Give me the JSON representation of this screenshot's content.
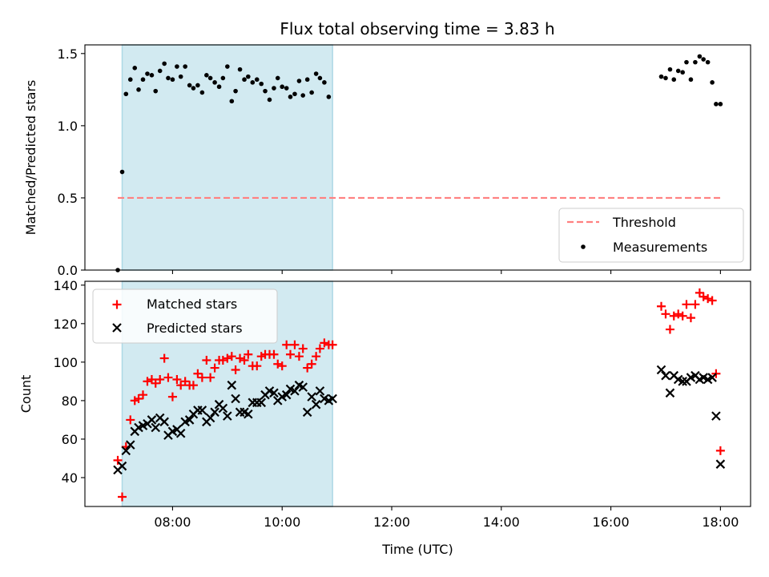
{
  "title": "Flux total observing time = 3.83 h",
  "colors": {
    "shade": "#add8e6",
    "threshold": "#ff8080",
    "measurement": "#000000",
    "matched": "#ff0000",
    "predicted": "#000000"
  },
  "chart_data": [
    {
      "type": "scatter",
      "ylabel": "Matched/Predicted stars",
      "xlim": [
        6.4,
        18.55
      ],
      "ylim": [
        0,
        1.56
      ],
      "yticks": [
        0,
        0.5,
        1.0,
        1.5
      ],
      "ytick_labels": [
        "0.0",
        "0.5",
        "1.0",
        "1.5"
      ],
      "shaded_span": [
        7.08,
        10.92
      ],
      "threshold": {
        "name": "Threshold",
        "y": 0.5,
        "x_range": [
          7.0,
          18.0
        ]
      },
      "legend": {
        "position": "lower right",
        "entries": [
          "Threshold",
          "Measurements"
        ]
      },
      "series": [
        {
          "name": "Measurements",
          "marker": "dot",
          "x": [
            7.0,
            7.08,
            7.15,
            7.23,
            7.31,
            7.38,
            7.46,
            7.54,
            7.62,
            7.69,
            7.77,
            7.85,
            7.92,
            8.0,
            8.08,
            8.15,
            8.23,
            8.31,
            8.38,
            8.46,
            8.54,
            8.62,
            8.69,
            8.77,
            8.85,
            8.92,
            9.0,
            9.08,
            9.15,
            9.23,
            9.31,
            9.38,
            9.46,
            9.54,
            9.62,
            9.69,
            9.77,
            9.85,
            9.92,
            10.0,
            10.08,
            10.15,
            10.23,
            10.31,
            10.38,
            10.46,
            10.54,
            10.62,
            10.69,
            10.77,
            10.85,
            16.92,
            17.0,
            17.08,
            17.15,
            17.23,
            17.31,
            17.38,
            17.46,
            17.54,
            17.62,
            17.69,
            17.77,
            17.85,
            17.92,
            18.0
          ],
          "y": [
            0.0,
            0.68,
            1.22,
            1.32,
            1.4,
            1.25,
            1.32,
            1.36,
            1.35,
            1.24,
            1.38,
            1.43,
            1.33,
            1.32,
            1.41,
            1.34,
            1.41,
            1.28,
            1.26,
            1.28,
            1.23,
            1.35,
            1.33,
            1.3,
            1.27,
            1.33,
            1.41,
            1.17,
            1.24,
            1.39,
            1.32,
            1.34,
            1.3,
            1.32,
            1.29,
            1.24,
            1.18,
            1.26,
            1.33,
            1.27,
            1.26,
            1.2,
            1.22,
            1.31,
            1.21,
            1.32,
            1.23,
            1.36,
            1.33,
            1.3,
            1.2,
            1.34,
            1.33,
            1.39,
            1.32,
            1.38,
            1.37,
            1.44,
            1.32,
            1.44,
            1.48,
            1.46,
            1.44,
            1.3,
            1.15,
            1.15
          ]
        }
      ]
    },
    {
      "type": "scatter",
      "ylabel": "Count",
      "xlabel": "Time (UTC)",
      "xlim": [
        6.4,
        18.55
      ],
      "ylim": [
        25,
        142
      ],
      "xticks": [
        8,
        10,
        12,
        14,
        16,
        18
      ],
      "xtick_labels": [
        "08:00",
        "10:00",
        "12:00",
        "14:00",
        "16:00",
        "18:00"
      ],
      "yticks": [
        40,
        60,
        80,
        100,
        120,
        140
      ],
      "ytick_labels": [
        "40",
        "60",
        "80",
        "100",
        "120",
        "140"
      ],
      "shaded_span": [
        7.08,
        10.92
      ],
      "legend": {
        "position": "upper left",
        "entries": [
          "Matched stars",
          "Predicted stars"
        ]
      },
      "series": [
        {
          "name": "Matched stars",
          "marker": "plus",
          "x": [
            7.0,
            7.08,
            7.15,
            7.23,
            7.31,
            7.38,
            7.46,
            7.54,
            7.62,
            7.69,
            7.77,
            7.85,
            7.92,
            8.0,
            8.08,
            8.15,
            8.23,
            8.31,
            8.38,
            8.46,
            8.54,
            8.62,
            8.69,
            8.77,
            8.85,
            8.92,
            9.0,
            9.08,
            9.15,
            9.23,
            9.31,
            9.38,
            9.46,
            9.54,
            9.62,
            9.69,
            9.77,
            9.85,
            9.92,
            10.0,
            10.08,
            10.15,
            10.23,
            10.31,
            10.38,
            10.46,
            10.54,
            10.62,
            10.69,
            10.77,
            10.85,
            10.92,
            16.92,
            17.0,
            17.08,
            17.15,
            17.23,
            17.31,
            17.38,
            17.46,
            17.54,
            17.62,
            17.69,
            17.77,
            17.85,
            17.92,
            18.0
          ],
          "y": [
            49,
            30,
            56,
            70,
            80,
            81,
            83,
            90,
            91,
            89,
            91,
            102,
            92,
            82,
            91,
            88,
            90,
            88,
            88,
            94,
            92,
            101,
            92,
            97,
            101,
            101,
            102,
            103,
            96,
            102,
            101,
            104,
            98,
            98,
            103,
            104,
            104,
            104,
            99,
            98,
            109,
            104,
            109,
            103,
            107,
            97,
            99,
            103,
            107,
            110,
            109,
            109,
            129,
            125,
            117,
            124,
            125,
            124,
            130,
            123,
            130,
            136,
            134,
            133,
            132,
            94,
            54
          ]
        },
        {
          "name": "Predicted stars",
          "marker": "x",
          "x": [
            7.0,
            7.08,
            7.15,
            7.23,
            7.31,
            7.38,
            7.46,
            7.54,
            7.62,
            7.69,
            7.77,
            7.85,
            7.92,
            8.0,
            8.08,
            8.15,
            8.23,
            8.31,
            8.38,
            8.46,
            8.54,
            8.62,
            8.69,
            8.77,
            8.85,
            8.92,
            9.0,
            9.08,
            9.15,
            9.23,
            9.31,
            9.38,
            9.46,
            9.54,
            9.62,
            9.69,
            9.77,
            9.85,
            9.92,
            10.0,
            10.08,
            10.15,
            10.23,
            10.31,
            10.38,
            10.46,
            10.54,
            10.62,
            10.69,
            10.77,
            10.85,
            10.92,
            16.92,
            17.0,
            17.08,
            17.15,
            17.23,
            17.31,
            17.38,
            17.46,
            17.54,
            17.62,
            17.69,
            17.77,
            17.85,
            17.92,
            18.0
          ],
          "y": [
            44,
            46,
            54,
            57,
            64,
            66,
            67,
            68,
            70,
            66,
            71,
            69,
            62,
            64,
            65,
            63,
            69,
            70,
            73,
            75,
            75,
            69,
            71,
            74,
            78,
            76,
            72,
            88,
            81,
            74,
            74,
            73,
            79,
            79,
            79,
            83,
            85,
            84,
            80,
            82,
            83,
            86,
            85,
            88,
            87,
            74,
            82,
            78,
            85,
            81,
            80,
            81,
            96,
            93,
            84,
            93,
            91,
            90,
            90,
            92,
            93,
            91,
            92,
            91,
            92,
            72,
            47
          ]
        }
      ]
    }
  ]
}
